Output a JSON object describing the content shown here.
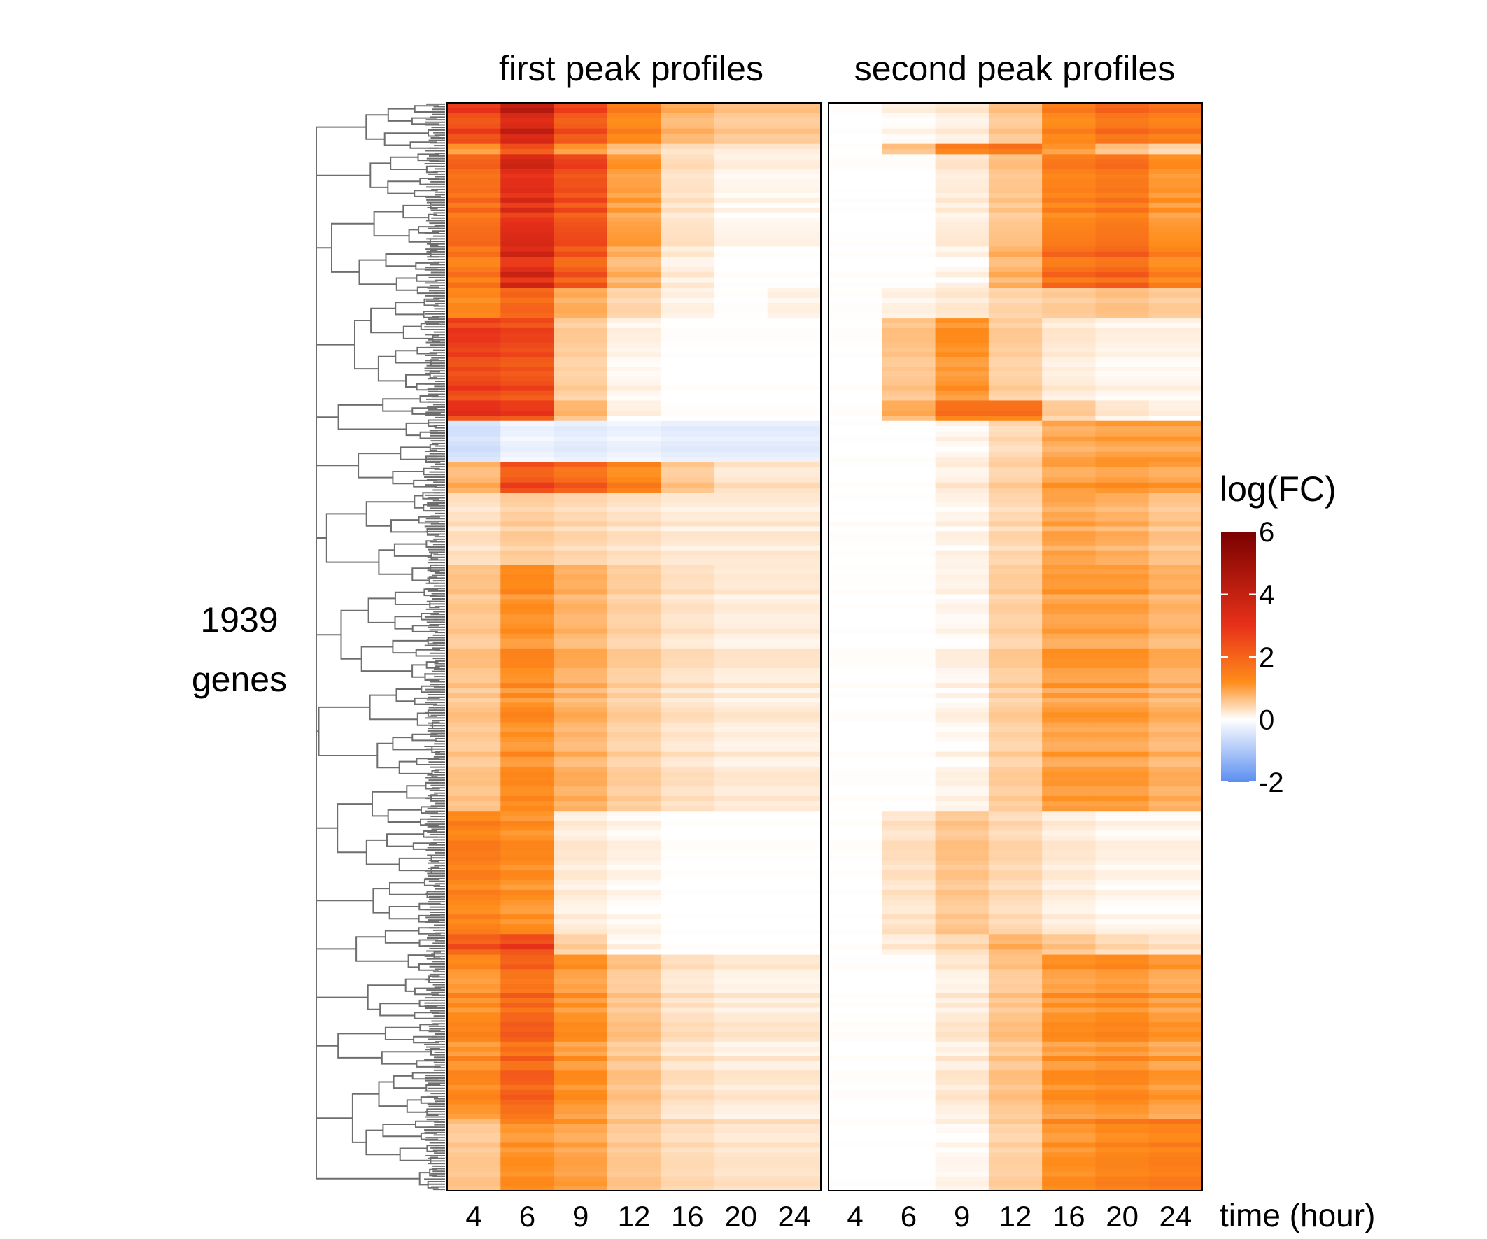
{
  "chart_data": {
    "type": "heatmap",
    "row_label_line1": "1939",
    "row_label_line2": "genes",
    "x_title": "time (hour)",
    "legend": {
      "title": "log(FC)",
      "ticks": [
        "6",
        "4",
        "2",
        "0",
        "-2"
      ],
      "tick_values": [
        6,
        4,
        2,
        0,
        -2
      ],
      "range": [
        -2,
        6
      ],
      "colors": [
        "#5b8ef0",
        "#ffffff",
        "#ff8c1a",
        "#e8311a",
        "#7a0000"
      ]
    },
    "panels": [
      {
        "title": "first peak profiles",
        "x": [
          "4",
          "6",
          "9",
          "12",
          "16",
          "20",
          "24"
        ],
        "row_blocks": [
          {
            "weight": 4,
            "values": [
              2.6,
              3.8,
              2.4,
              1.4,
              0.8,
              0.6,
              0.6
            ]
          },
          {
            "weight": 1,
            "values": [
              1.0,
              2.2,
              1.0,
              0.6,
              0.3,
              0.2,
              0.2
            ]
          },
          {
            "weight": 9,
            "values": [
              1.8,
              3.2,
              2.4,
              1.0,
              0.3,
              0.1,
              0.1
            ]
          },
          {
            "weight": 4,
            "values": [
              1.6,
              3.4,
              2.2,
              0.8,
              0.2,
              0.0,
              0.0
            ]
          },
          {
            "weight": 3,
            "values": [
              1.2,
              1.8,
              0.8,
              0.4,
              0.1,
              0.0,
              0.1
            ]
          },
          {
            "weight": 8,
            "values": [
              2.6,
              2.4,
              0.5,
              0.1,
              0.0,
              0.0,
              0.0
            ]
          },
          {
            "weight": 2,
            "values": [
              2.8,
              2.6,
              0.7,
              0.1,
              0.0,
              0.0,
              0.0
            ]
          },
          {
            "weight": 4,
            "values": [
              -0.5,
              -0.2,
              -0.3,
              -0.2,
              -0.3,
              -0.3,
              -0.3
            ]
          },
          {
            "weight": 3,
            "values": [
              0.8,
              2.4,
              2.0,
              1.4,
              0.6,
              0.3,
              0.3
            ]
          },
          {
            "weight": 7,
            "values": [
              0.3,
              0.5,
              0.4,
              0.3,
              0.2,
              0.2,
              0.2
            ]
          },
          {
            "weight": 24,
            "values": [
              0.6,
              1.2,
              0.8,
              0.5,
              0.3,
              0.2,
              0.2
            ]
          },
          {
            "weight": 12,
            "values": [
              1.4,
              1.2,
              0.2,
              0.1,
              0.0,
              0.0,
              0.0
            ]
          },
          {
            "weight": 2,
            "values": [
              2.2,
              2.6,
              0.5,
              0.1,
              0.0,
              0.0,
              0.0
            ]
          },
          {
            "weight": 16,
            "values": [
              1.2,
              1.9,
              1.1,
              0.6,
              0.3,
              0.2,
              0.2
            ]
          },
          {
            "weight": 7,
            "values": [
              0.6,
              1.2,
              1.0,
              0.6,
              0.4,
              0.3,
              0.3
            ]
          }
        ]
      },
      {
        "title": "second peak profiles",
        "x": [
          "4",
          "6",
          "9",
          "12",
          "16",
          "20",
          "24"
        ],
        "row_blocks": [
          {
            "weight": 4,
            "values": [
              0.0,
              0.1,
              0.2,
              0.6,
              1.4,
              1.8,
              1.6
            ]
          },
          {
            "weight": 1,
            "values": [
              0.0,
              0.6,
              1.4,
              1.6,
              1.0,
              0.6,
              0.4
            ]
          },
          {
            "weight": 9,
            "values": [
              0.0,
              0.0,
              0.2,
              0.6,
              1.4,
              1.6,
              1.1
            ]
          },
          {
            "weight": 4,
            "values": [
              0.0,
              0.0,
              0.1,
              0.8,
              1.8,
              2.0,
              1.4
            ]
          },
          {
            "weight": 3,
            "values": [
              0.0,
              0.1,
              0.2,
              0.4,
              0.5,
              0.6,
              0.5
            ]
          },
          {
            "weight": 8,
            "values": [
              0.0,
              0.6,
              1.1,
              0.5,
              0.2,
              0.1,
              0.1
            ]
          },
          {
            "weight": 2,
            "values": [
              0.0,
              0.8,
              1.6,
              1.6,
              0.5,
              0.2,
              0.1
            ]
          },
          {
            "weight": 4,
            "values": [
              0.0,
              0.0,
              0.1,
              0.4,
              0.9,
              1.0,
              1.0
            ]
          },
          {
            "weight": 3,
            "values": [
              0.0,
              0.0,
              0.2,
              0.5,
              1.0,
              1.1,
              1.0
            ]
          },
          {
            "weight": 7,
            "values": [
              0.0,
              0.0,
              0.1,
              0.4,
              0.9,
              0.8,
              0.6
            ]
          },
          {
            "weight": 24,
            "values": [
              0.0,
              0.0,
              0.1,
              0.5,
              1.0,
              1.0,
              0.8
            ]
          },
          {
            "weight": 12,
            "values": [
              0.0,
              0.3,
              0.6,
              0.4,
              0.2,
              0.1,
              0.1
            ]
          },
          {
            "weight": 2,
            "values": [
              0.0,
              0.2,
              0.4,
              0.8,
              0.6,
              0.4,
              0.3
            ]
          },
          {
            "weight": 16,
            "values": [
              0.0,
              0.0,
              0.2,
              0.6,
              1.1,
              1.2,
              1.0
            ]
          },
          {
            "weight": 7,
            "values": [
              0.0,
              0.0,
              0.1,
              0.5,
              1.2,
              1.4,
              1.5
            ]
          }
        ]
      }
    ]
  }
}
